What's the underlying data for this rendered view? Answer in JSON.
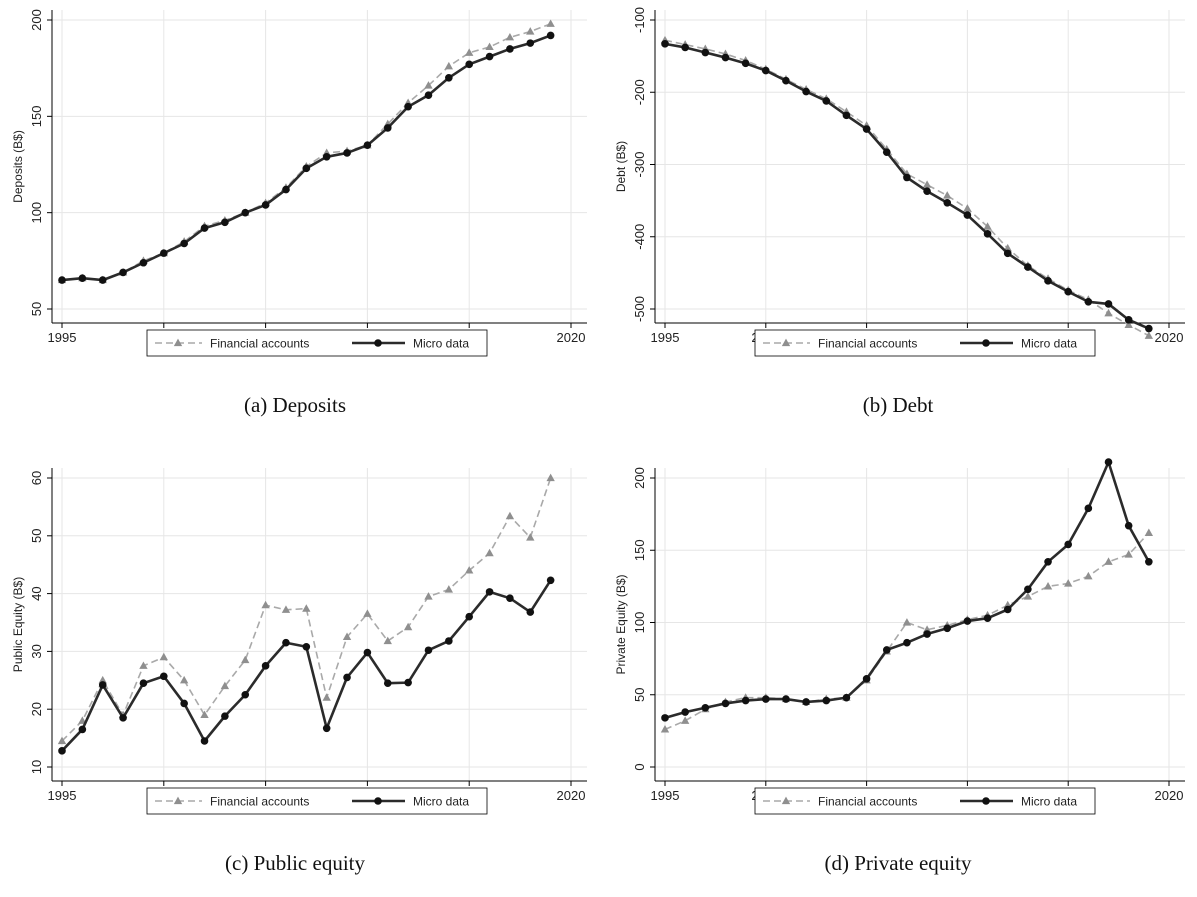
{
  "figure": {
    "legend": {
      "fa_label": "Financial accounts",
      "md_label": "Micro data"
    },
    "colors": {
      "financial_accounts": "#a9a9a9",
      "micro_data": "#2b2b2b",
      "grid": "#e6e6e6",
      "axis": "#000000"
    }
  },
  "chart_data": [
    {
      "type": "line",
      "caption": "(a) Deposits",
      "ylabel": "Deposits (B$)",
      "xlabel": "",
      "xlim": [
        1995,
        2020
      ],
      "ylim": [
        50,
        200
      ],
      "xticks": [
        1995,
        2000,
        2005,
        2010,
        2015,
        2020
      ],
      "yticks": [
        50,
        100,
        150,
        200
      ],
      "grid": true,
      "legend_position": "bottom",
      "x": [
        1995,
        1996,
        1997,
        1998,
        1999,
        2000,
        2001,
        2002,
        2003,
        2004,
        2005,
        2006,
        2007,
        2008,
        2009,
        2010,
        2011,
        2012,
        2013,
        2014,
        2015,
        2016,
        2017,
        2018,
        2019
      ],
      "series": [
        {
          "name": "Financial accounts",
          "style": "dashed-triangle",
          "values": [
            65,
            66,
            65,
            69,
            75,
            79,
            85,
            93,
            96,
            100,
            105,
            113,
            124,
            131,
            132,
            135,
            146,
            157,
            166,
            176,
            183,
            186,
            191,
            194,
            198
          ]
        },
        {
          "name": "Micro data",
          "style": "solid-circle",
          "values": [
            65,
            66,
            65,
            69,
            74,
            79,
            84,
            92,
            95,
            100,
            104,
            112,
            123,
            129,
            131,
            135,
            144,
            155,
            161,
            170,
            177,
            181,
            185,
            188,
            192
          ]
        }
      ]
    },
    {
      "type": "line",
      "caption": "(b) Debt",
      "ylabel": "Debt (B$)",
      "xlabel": "",
      "xlim": [
        1995,
        2020
      ],
      "ylim": [
        -500,
        -100
      ],
      "xticks": [
        1995,
        2000,
        2005,
        2010,
        2015,
        2020
      ],
      "yticks": [
        -500,
        -400,
        -300,
        -200,
        -100
      ],
      "grid": true,
      "legend_position": "bottom",
      "x": [
        1995,
        1996,
        1997,
        1998,
        1999,
        2000,
        2001,
        2002,
        2003,
        2004,
        2005,
        2006,
        2007,
        2008,
        2009,
        2010,
        2011,
        2012,
        2013,
        2014,
        2015,
        2016,
        2017,
        2018,
        2019
      ],
      "series": [
        {
          "name": "Financial accounts",
          "style": "dashed-triangle",
          "values": [
            -128,
            -134,
            -140,
            -147,
            -156,
            -168,
            -182,
            -196,
            -209,
            -227,
            -246,
            -279,
            -313,
            -328,
            -343,
            -361,
            -386,
            -416,
            -440,
            -458,
            -474,
            -487,
            -506,
            -522,
            -537
          ]
        },
        {
          "name": "Micro data",
          "style": "solid-circle",
          "values": [
            -133,
            -138,
            -145,
            -152,
            -160,
            -170,
            -184,
            -199,
            -212,
            -232,
            -251,
            -283,
            -318,
            -337,
            -353,
            -370,
            -396,
            -423,
            -442,
            -461,
            -476,
            -490,
            -493,
            -515,
            -527
          ]
        }
      ]
    },
    {
      "type": "line",
      "caption": "(c) Public equity",
      "ylabel": "Public Equity (B$)",
      "xlabel": "",
      "xlim": [
        1995,
        2020
      ],
      "ylim": [
        10,
        60
      ],
      "xticks": [
        1995,
        2000,
        2005,
        2010,
        2015,
        2020
      ],
      "yticks": [
        10,
        20,
        30,
        40,
        50,
        60
      ],
      "grid": true,
      "legend_position": "bottom",
      "x": [
        1995,
        1996,
        1997,
        1998,
        1999,
        2000,
        2001,
        2002,
        2003,
        2004,
        2005,
        2006,
        2007,
        2008,
        2009,
        2010,
        2011,
        2012,
        2013,
        2014,
        2015,
        2016,
        2017,
        2018,
        2019
      ],
      "series": [
        {
          "name": "Financial accounts",
          "style": "dashed-triangle",
          "values": [
            14.5,
            18,
            25,
            19,
            27.5,
            29,
            25,
            19,
            24,
            28.5,
            38,
            37.2,
            37.4,
            22,
            32.5,
            36.5,
            31.8,
            34.2,
            39.5,
            40.7,
            44,
            47,
            53.4,
            49.7,
            60
          ]
        },
        {
          "name": "Micro data",
          "style": "solid-circle",
          "values": [
            12.8,
            16.5,
            24.2,
            18.5,
            24.5,
            25.7,
            21,
            14.5,
            18.8,
            22.5,
            27.5,
            31.5,
            30.8,
            16.7,
            25.5,
            29.8,
            24.5,
            24.6,
            30.2,
            31.8,
            36,
            40.3,
            39.2,
            36.8,
            42.3
          ]
        }
      ]
    },
    {
      "type": "line",
      "caption": "(d) Private equity",
      "ylabel": "Private Equity (B$)",
      "xlabel": "",
      "xlim": [
        1995,
        2020
      ],
      "ylim": [
        0,
        200
      ],
      "xticks": [
        1995,
        2000,
        2005,
        2010,
        2015,
        2020
      ],
      "yticks": [
        0,
        50,
        100,
        150,
        200
      ],
      "grid": true,
      "legend_position": "bottom",
      "x": [
        1995,
        1996,
        1997,
        1998,
        1999,
        2000,
        2001,
        2002,
        2003,
        2004,
        2005,
        2006,
        2007,
        2008,
        2009,
        2010,
        2011,
        2012,
        2013,
        2014,
        2015,
        2016,
        2017,
        2018,
        2019
      ],
      "series": [
        {
          "name": "Financial accounts",
          "style": "dashed-triangle",
          "values": [
            26,
            32,
            40,
            45,
            48,
            48,
            47,
            45,
            47,
            48,
            60,
            80,
            100,
            95,
            98,
            102,
            105,
            112,
            118,
            125,
            127,
            132,
            142,
            147,
            162
          ]
        },
        {
          "name": "Micro data",
          "style": "solid-circle",
          "values": [
            34,
            38,
            41,
            44,
            46,
            47,
            47,
            45,
            46,
            48,
            61,
            81,
            86,
            92,
            96,
            101,
            103,
            109,
            123,
            142,
            154,
            179,
            211,
            167,
            142
          ]
        }
      ]
    }
  ]
}
